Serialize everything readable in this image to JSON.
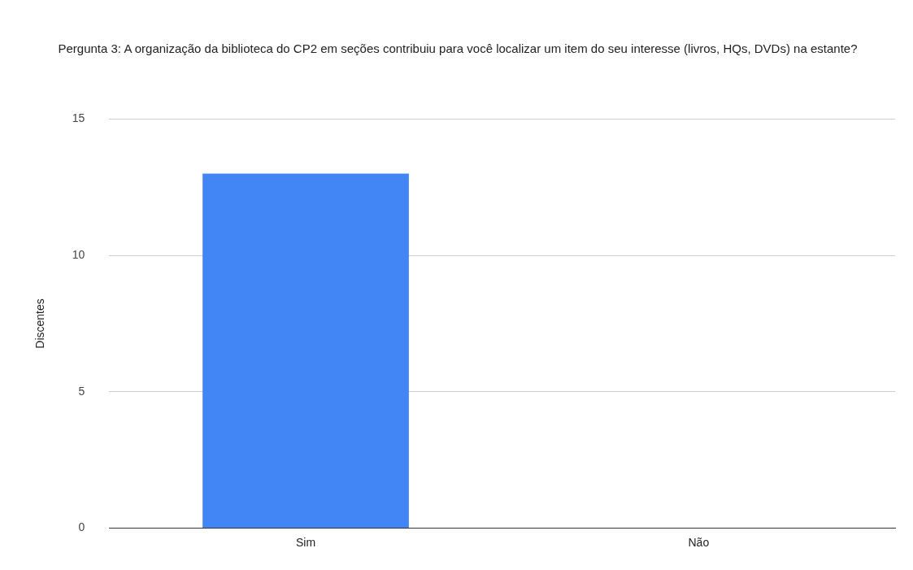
{
  "chart_data": {
    "type": "bar",
    "title": "Pergunta 3: A organização da biblioteca do CP2 em seções contribuiu para você localizar um item do seu interesse (livros, HQs, DVDs) na estante?",
    "ylabel": "Discentes",
    "categories": [
      "Sim",
      "Não"
    ],
    "values": [
      13,
      0
    ],
    "color": "#4285f4",
    "ylim": [
      0,
      15
    ],
    "yticks": [
      0,
      5,
      10,
      15
    ],
    "grid": "y",
    "legend": false
  }
}
